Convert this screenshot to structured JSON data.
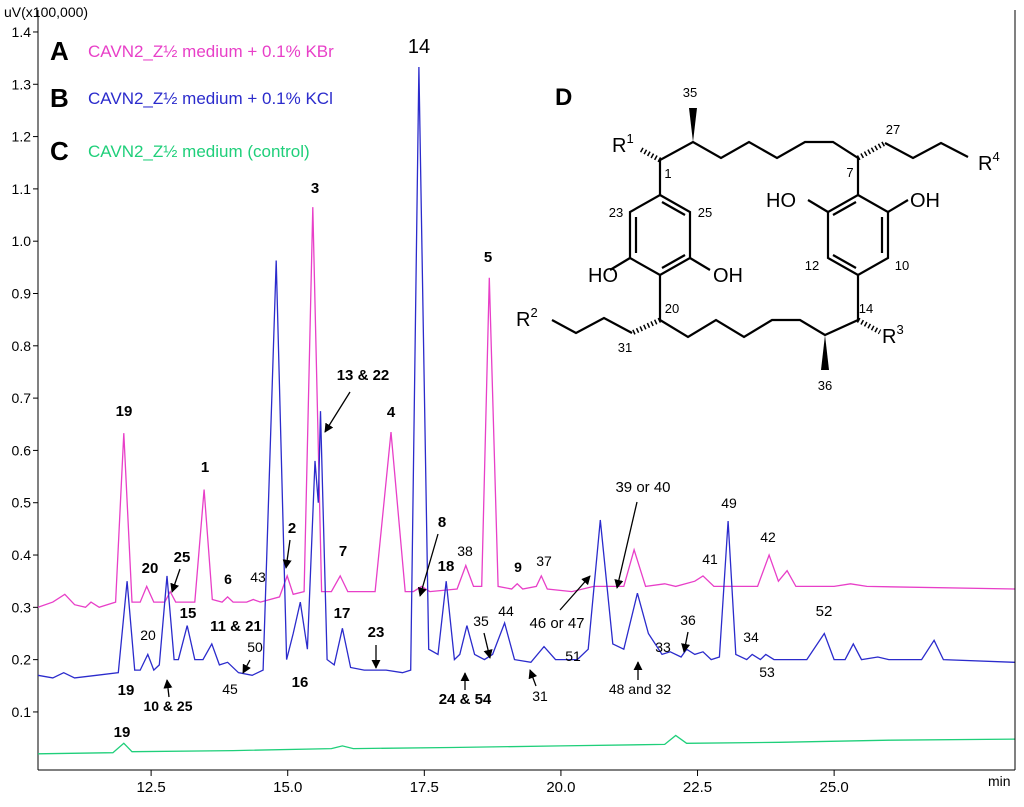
{
  "chart_data": {
    "type": "line",
    "ylabel": "uV(x100,000)",
    "xlabel": "min",
    "xlim": [
      10.43,
      28.31
    ],
    "ylim": [
      -0.011,
      1.442
    ],
    "xticks": [
      12.5,
      {
        "value": 15,
        "label": "15.0"
      },
      17.5,
      {
        "value": 20,
        "label": "20.0"
      },
      22.5,
      {
        "value": 25,
        "label": "25.0"
      }
    ],
    "yticks": [
      0.1,
      0.2,
      0.3,
      0.4,
      0.5,
      0.6,
      0.7,
      0.8,
      0.9,
      {
        "value": 1,
        "label": "1.0"
      },
      1.1,
      1.2,
      1.3,
      1.4
    ],
    "series": [
      {
        "label": "A",
        "name": "CAVN2_Z½ medium + 0.1%  KBr",
        "color": "#e83fc8",
        "x": [
          10.43,
          10.7,
          10.92,
          11.1,
          11.3,
          11.4,
          11.55,
          11.85,
          12.0,
          12.15,
          12.3,
          12.42,
          12.55,
          12.75,
          12.85,
          12.95,
          13.3,
          13.47,
          13.62,
          13.8,
          13.9,
          14.0,
          14.25,
          14.37,
          14.5,
          14.85,
          14.99,
          15.1,
          15.3,
          15.46,
          15.62,
          15.8,
          15.96,
          16.1,
          16.6,
          16.89,
          17.15,
          17.3,
          17.45,
          17.6,
          18.1,
          18.26,
          18.4,
          18.55,
          18.69,
          18.85,
          19.1,
          19.2,
          19.3,
          19.55,
          19.64,
          19.75,
          20.2,
          20.6,
          21.15,
          21.34,
          21.55,
          21.9,
          22.1,
          22.45,
          22.6,
          22.8,
          23.6,
          23.81,
          23.98,
          24.14,
          24.3,
          25.0,
          25.3,
          25.6,
          28.3
        ],
        "values": [
          0.3,
          0.31,
          0.325,
          0.305,
          0.3,
          0.31,
          0.3,
          0.31,
          0.633,
          0.31,
          0.31,
          0.34,
          0.31,
          0.31,
          0.33,
          0.31,
          0.31,
          0.525,
          0.315,
          0.31,
          0.32,
          0.31,
          0.31,
          0.315,
          0.31,
          0.32,
          0.36,
          0.325,
          0.33,
          1.065,
          0.33,
          0.33,
          0.36,
          0.33,
          0.33,
          0.635,
          0.33,
          0.33,
          0.34,
          0.33,
          0.335,
          0.38,
          0.34,
          0.34,
          0.93,
          0.34,
          0.335,
          0.345,
          0.335,
          0.34,
          0.36,
          0.335,
          0.33,
          0.34,
          0.34,
          0.41,
          0.34,
          0.345,
          0.34,
          0.35,
          0.36,
          0.34,
          0.34,
          0.4,
          0.35,
          0.37,
          0.34,
          0.34,
          0.345,
          0.34,
          0.335
        ]
      },
      {
        "label": "B",
        "name": "CAVN2_Z½ medium + 0.1%  KCl",
        "color": "#2b2bcc",
        "x": [
          10.43,
          10.7,
          10.9,
          11.1,
          11.5,
          11.9,
          12.06,
          12.2,
          12.3,
          12.44,
          12.55,
          12.65,
          12.79,
          12.92,
          13.0,
          13.16,
          13.3,
          13.45,
          13.61,
          13.75,
          13.9,
          14.1,
          14.35,
          14.55,
          14.79,
          14.98,
          15.1,
          15.23,
          15.36,
          15.5,
          15.56,
          15.6,
          15.72,
          15.85,
          16.0,
          16.15,
          16.4,
          16.8,
          17.1,
          17.25,
          17.4,
          17.58,
          17.75,
          17.9,
          18.05,
          18.15,
          18.28,
          18.42,
          18.6,
          18.75,
          18.97,
          19.15,
          19.45,
          19.69,
          19.9,
          20.3,
          20.5,
          20.72,
          20.95,
          21.15,
          21.4,
          21.6,
          21.85,
          22.0,
          22.2,
          22.3,
          22.45,
          22.6,
          22.75,
          22.9,
          23.06,
          23.2,
          23.4,
          23.5,
          23.65,
          23.75,
          23.9,
          24.5,
          24.82,
          25.0,
          25.2,
          25.35,
          25.5,
          25.8,
          26.0,
          26.6,
          26.83,
          27.0,
          28.3
        ],
        "values": [
          0.17,
          0.165,
          0.175,
          0.165,
          0.17,
          0.175,
          0.35,
          0.18,
          0.18,
          0.21,
          0.18,
          0.19,
          0.36,
          0.2,
          0.2,
          0.265,
          0.2,
          0.2,
          0.23,
          0.19,
          0.195,
          0.175,
          0.17,
          0.18,
          0.963,
          0.2,
          0.25,
          0.31,
          0.22,
          0.58,
          0.5,
          0.675,
          0.2,
          0.19,
          0.26,
          0.185,
          0.18,
          0.18,
          0.175,
          0.18,
          1.333,
          0.22,
          0.21,
          0.35,
          0.2,
          0.21,
          0.265,
          0.21,
          0.2,
          0.21,
          0.27,
          0.2,
          0.195,
          0.225,
          0.2,
          0.2,
          0.22,
          0.467,
          0.23,
          0.22,
          0.327,
          0.25,
          0.21,
          0.215,
          0.205,
          0.22,
          0.21,
          0.215,
          0.2,
          0.205,
          0.465,
          0.21,
          0.2,
          0.21,
          0.2,
          0.21,
          0.2,
          0.2,
          0.25,
          0.2,
          0.2,
          0.23,
          0.2,
          0.205,
          0.2,
          0.2,
          0.237,
          0.2,
          0.195
        ]
      },
      {
        "label": "C",
        "name": "CAVN2_Z½ medium (control)",
        "color": "#1fcf7a",
        "x": [
          10.43,
          11.8,
          12.0,
          12.15,
          14.0,
          15.8,
          16.0,
          16.2,
          18.0,
          20.0,
          21.9,
          22.1,
          22.3,
          24.0,
          26.0,
          28.3
        ],
        "values": [
          0.02,
          0.022,
          0.04,
          0.024,
          0.026,
          0.03,
          0.035,
          0.03,
          0.032,
          0.035,
          0.038,
          0.055,
          0.04,
          0.042,
          0.046,
          0.048
        ]
      }
    ],
    "annotations": [
      "19",
      "1",
      "20",
      "25",
      "6",
      "43",
      "2",
      "3",
      "7",
      "13 & 22",
      "4",
      "14",
      "8",
      "38",
      "18",
      "5",
      "9",
      "37",
      "39 or 40",
      "41",
      "49",
      "42",
      "15",
      "11 & 21",
      "20",
      "50",
      "19",
      "10 & 25",
      "45",
      "16",
      "17",
      "23",
      "24 & 54",
      "35",
      "44",
      "46 or 47",
      "31",
      "51",
      "33",
      "48 and 32",
      "36",
      "34",
      "53",
      "52",
      "19"
    ]
  },
  "structure": {
    "title": "D",
    "labels": [
      "35",
      "1",
      "27",
      "7",
      "23",
      "25",
      "HO",
      "OH",
      "HO",
      "OH",
      "12",
      "10",
      "20",
      "14",
      "31",
      "36"
    ],
    "r_groups": [
      {
        "base": "R",
        "sup": "1"
      },
      {
        "base": "R",
        "sup": "2"
      },
      {
        "base": "R",
        "sup": "3"
      },
      {
        "base": "R",
        "sup": "4"
      }
    ]
  }
}
